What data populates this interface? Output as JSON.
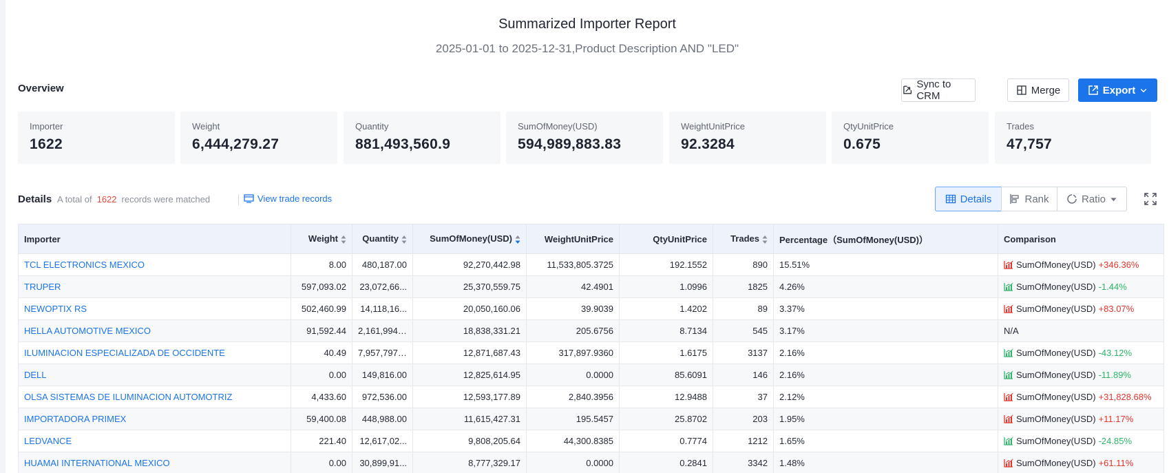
{
  "report": {
    "title": "Summarized Importer Report",
    "subtitle": "2025-01-01 to 2025-12-31,Product Description AND \"LED\""
  },
  "overview": {
    "label": "Overview",
    "buttons": {
      "sync": "Sync to CRM",
      "merge": "Merge",
      "export": "Export"
    },
    "stats": [
      {
        "label": "Importer",
        "value": "1622"
      },
      {
        "label": "Weight",
        "value": "6,444,279.27"
      },
      {
        "label": "Quantity",
        "value": "881,493,560.9"
      },
      {
        "label": "SumOfMoney(USD)",
        "value": "594,989,883.83"
      },
      {
        "label": "WeightUnitPrice",
        "value": "92.3284"
      },
      {
        "label": "QtyUnitPrice",
        "value": "0.675"
      },
      {
        "label": "Trades",
        "value": "47,757"
      }
    ]
  },
  "details": {
    "label": "Details",
    "matched_prefix": "A total of",
    "matched_count": "1622",
    "matched_suffix": "records were matched",
    "view_trade_records": "View trade records",
    "views": {
      "details": "Details",
      "rank": "Rank",
      "ratio": "Ratio"
    }
  },
  "table": {
    "columns": [
      "Importer",
      "Weight",
      "Quantity",
      "SumOfMoney(USD)",
      "WeightUnitPrice",
      "QtyUnitPrice",
      "Trades",
      "Percentage（SumOfMoney(USD)）",
      "Comparison"
    ],
    "rows": [
      {
        "importer": "TCL ELECTRONICS MEXICO",
        "weight": "8.00",
        "quantity": "480,187.00",
        "money": "92,270,442.98",
        "wup": "11,533,805.3725",
        "qup": "192.1552",
        "trades": "890",
        "pct": "15.51%",
        "cmp_label": "SumOfMoney(USD)",
        "cmp_value": "+346.36%",
        "trend": "up"
      },
      {
        "importer": "TRUPER",
        "weight": "597,093.02",
        "quantity": "23,072,66...",
        "money": "25,370,559.75",
        "wup": "42.4901",
        "qup": "1.0996",
        "trades": "1825",
        "pct": "4.26%",
        "cmp_label": "SumOfMoney(USD)",
        "cmp_value": "-1.44%",
        "trend": "down"
      },
      {
        "importer": "NEWOPTIX RS",
        "weight": "502,460.99",
        "quantity": "14,118,16...",
        "money": "20,050,160.06",
        "wup": "39.9039",
        "qup": "1.4202",
        "trades": "89",
        "pct": "3.37%",
        "cmp_label": "SumOfMoney(USD)",
        "cmp_value": "+83.07%",
        "trend": "up"
      },
      {
        "importer": "HELLA AUTOMOTIVE MEXICO",
        "weight": "91,592.44",
        "quantity": "2,161,994....",
        "money": "18,838,331.21",
        "wup": "205.6756",
        "qup": "8.7134",
        "trades": "545",
        "pct": "3.17%",
        "cmp_label": "N/A",
        "cmp_value": "",
        "trend": "none"
      },
      {
        "importer": "ILUMINACION ESPECIALIZADA DE OCCIDENTE",
        "weight": "40.49",
        "quantity": "7,957,797....",
        "money": "12,871,687.43",
        "wup": "317,897.9360",
        "qup": "1.6175",
        "trades": "3137",
        "pct": "2.16%",
        "cmp_label": "SumOfMoney(USD)",
        "cmp_value": "-43.12%",
        "trend": "down"
      },
      {
        "importer": "DELL",
        "weight": "0.00",
        "quantity": "149,816.00",
        "money": "12,825,614.95",
        "wup": "0.0000",
        "qup": "85.6091",
        "trades": "146",
        "pct": "2.16%",
        "cmp_label": "SumOfMoney(USD)",
        "cmp_value": "-11.89%",
        "trend": "down"
      },
      {
        "importer": "OLSA SISTEMAS DE ILUMINACION AUTOMOTRIZ",
        "weight": "4,433.60",
        "quantity": "972,536.00",
        "money": "12,593,177.89",
        "wup": "2,840.3956",
        "qup": "12.9488",
        "trades": "37",
        "pct": "2.12%",
        "cmp_label": "SumOfMoney(USD)",
        "cmp_value": "+31,828.68%",
        "trend": "up"
      },
      {
        "importer": "IMPORTADORA PRIMEX",
        "weight": "59,400.08",
        "quantity": "448,988.00",
        "money": "11,615,427.31",
        "wup": "195.5457",
        "qup": "25.8702",
        "trades": "203",
        "pct": "1.95%",
        "cmp_label": "SumOfMoney(USD)",
        "cmp_value": "+11.17%",
        "trend": "up"
      },
      {
        "importer": "LEDVANCE",
        "weight": "221.40",
        "quantity": "12,617,02...",
        "money": "9,808,205.64",
        "wup": "44,300.8385",
        "qup": "0.7774",
        "trades": "1212",
        "pct": "1.65%",
        "cmp_label": "SumOfMoney(USD)",
        "cmp_value": "-24.85%",
        "trend": "down"
      },
      {
        "importer": "HUAMAI INTERNATIONAL MEXICO",
        "weight": "0.00",
        "quantity": "30,899,91...",
        "money": "8,777,329.17",
        "wup": "0.0000",
        "qup": "0.2841",
        "trades": "3342",
        "pct": "1.48%",
        "cmp_label": "SumOfMoney(USD)",
        "cmp_value": "+61.11%",
        "trend": "up"
      }
    ]
  }
}
